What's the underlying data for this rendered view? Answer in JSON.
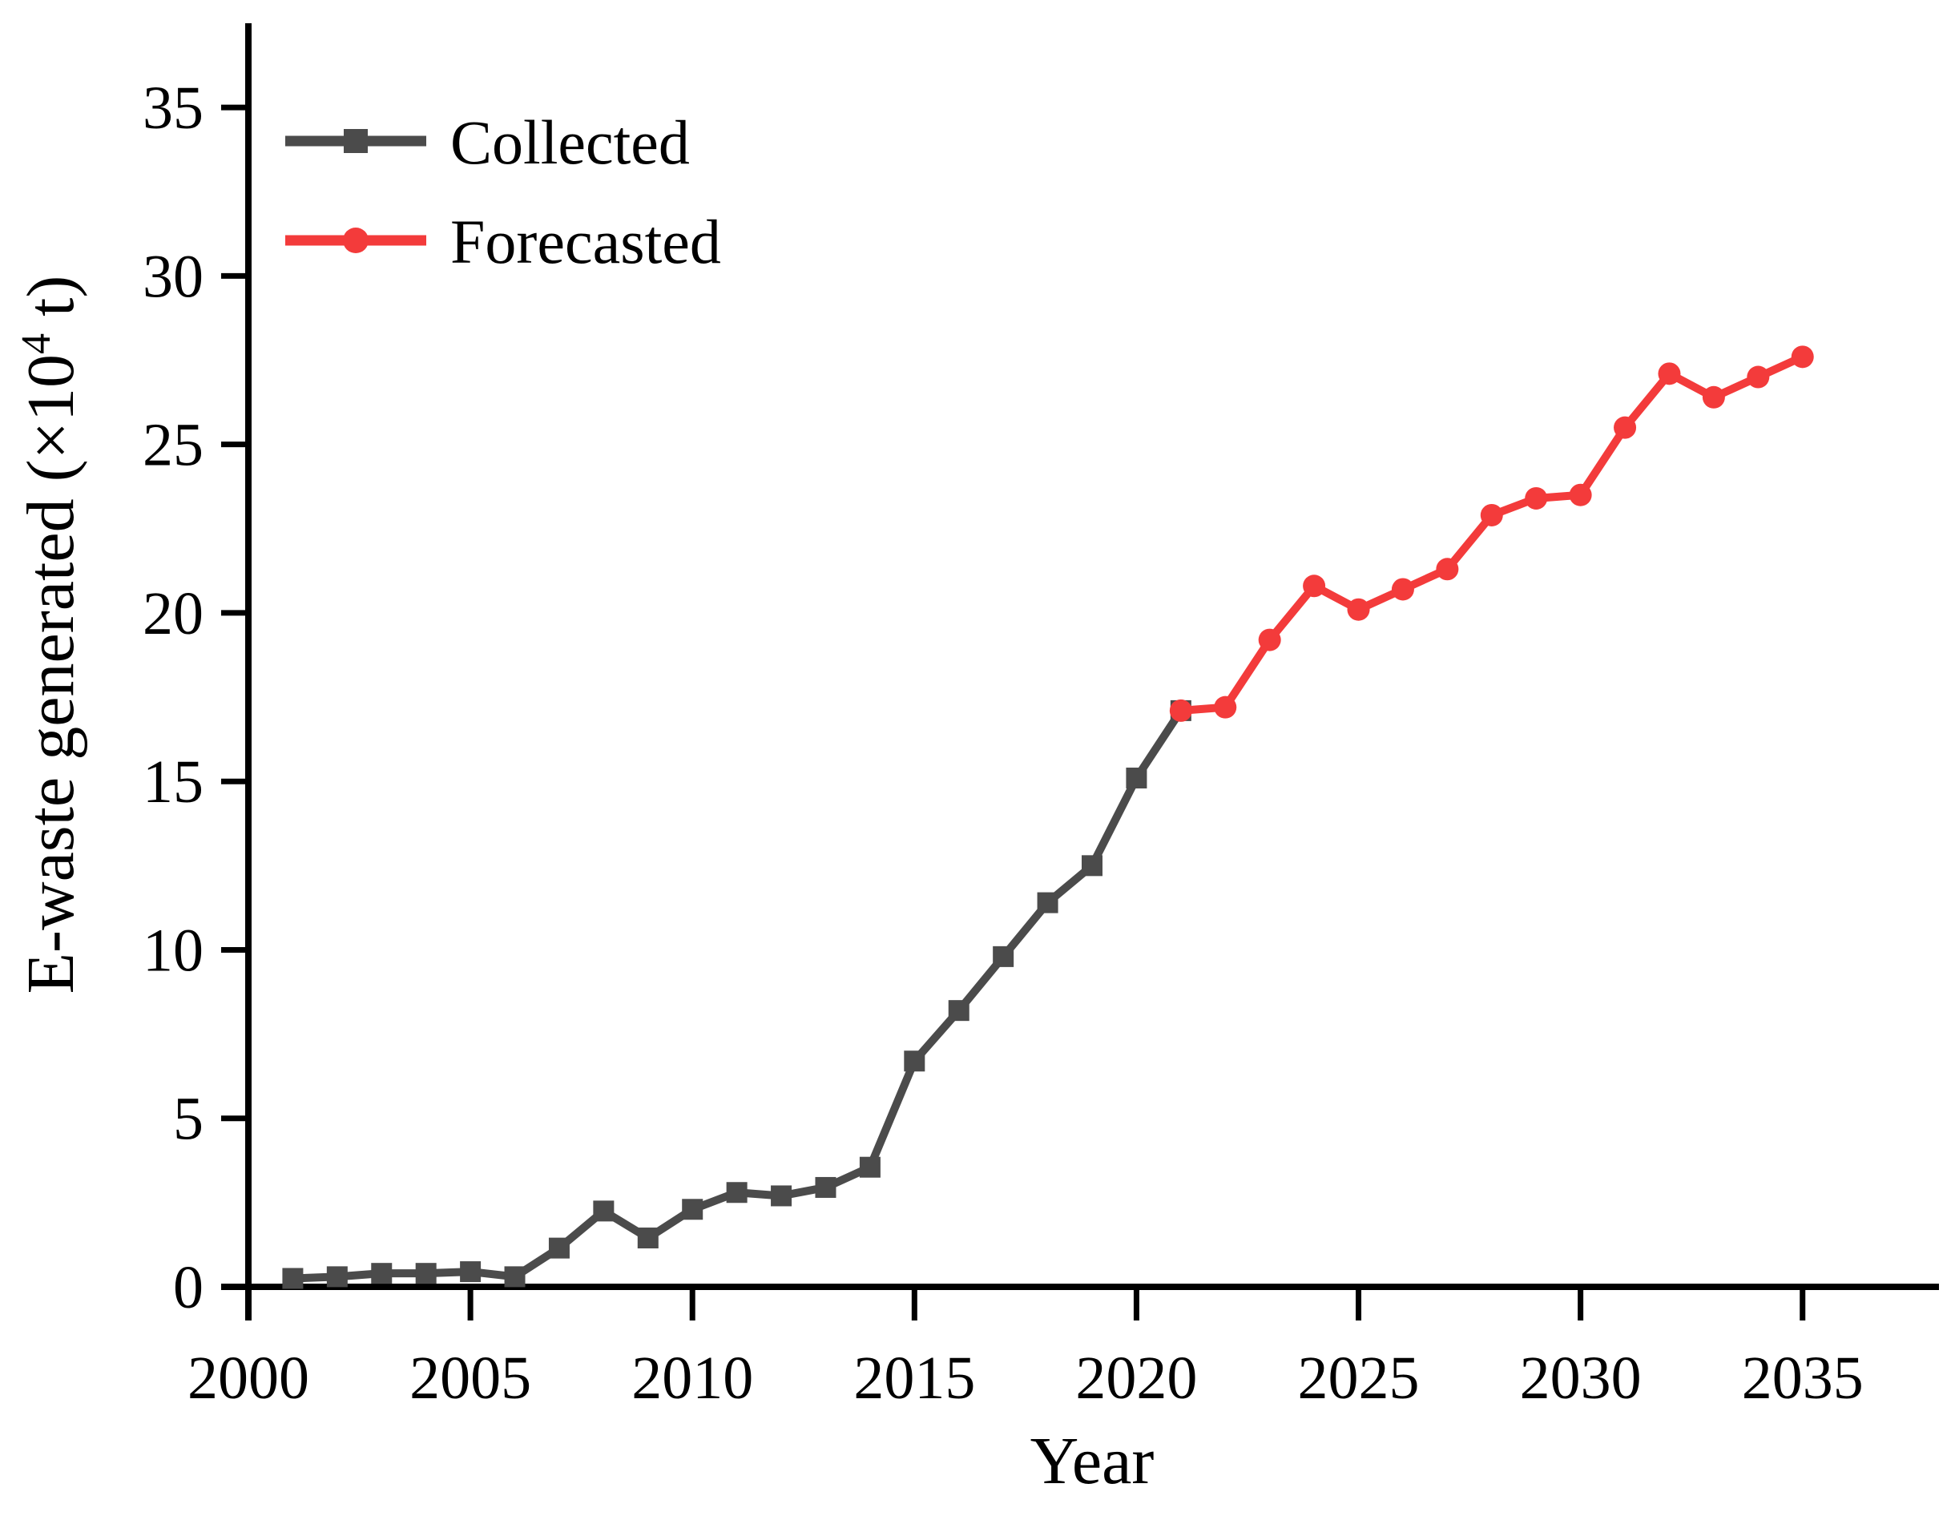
{
  "figure": {
    "background_color": "#ffffff",
    "text_color": "#000000",
    "x_axis": {
      "title": "Year",
      "ticks": [
        2000,
        2005,
        2010,
        2015,
        2020,
        2025,
        2030,
        2035
      ],
      "range": [
        2000,
        2038
      ]
    },
    "y_axis": {
      "title_prefix": "E-waste generated (×10",
      "title_sup": "4",
      "title_suffix": " t)",
      "ticks": [
        0,
        5,
        10,
        15,
        20,
        25,
        30,
        35
      ],
      "range": [
        0,
        37.5
      ]
    },
    "legend": {
      "position": "top-left",
      "entries": [
        {
          "label": "Collected",
          "color": "#4B4B4B",
          "marker": "square"
        },
        {
          "label": "Forecasted",
          "color": "#F33B3B",
          "marker": "circle"
        }
      ]
    }
  },
  "chart_data": {
    "type": "line",
    "title": "",
    "xlabel": "Year",
    "ylabel": "E-waste generated (×10^4 t)",
    "xlim": [
      2000,
      2038
    ],
    "ylim": [
      0,
      37.5
    ],
    "grid": false,
    "legend_position": "top-left",
    "series": [
      {
        "name": "Collected",
        "color": "#4B4B4B",
        "marker": "square",
        "x": [
          2001,
          2002,
          2003,
          2004,
          2005,
          2006,
          2007,
          2008,
          2009,
          2010,
          2011,
          2012,
          2013,
          2014,
          2015,
          2016,
          2017,
          2018,
          2019,
          2020,
          2021
        ],
        "y": [
          0.25,
          0.3,
          0.4,
          0.4,
          0.45,
          0.3,
          1.15,
          2.25,
          1.45,
          2.3,
          2.8,
          2.7,
          2.95,
          3.55,
          6.7,
          8.2,
          9.8,
          11.4,
          12.5,
          15.1,
          17.1
        ]
      },
      {
        "name": "Forecasted",
        "color": "#F33B3B",
        "marker": "circle",
        "x": [
          2021,
          2022,
          2023,
          2024,
          2025,
          2026,
          2027,
          2028,
          2029,
          2030,
          2031,
          2032,
          2033,
          2034,
          2035
        ],
        "y": [
          17.1,
          17.2,
          19.2,
          20.8,
          20.1,
          20.7,
          21.3,
          22.9,
          23.4,
          23.5,
          25.5,
          27.1,
          26.4,
          27.0,
          27.6
        ]
      }
    ]
  }
}
